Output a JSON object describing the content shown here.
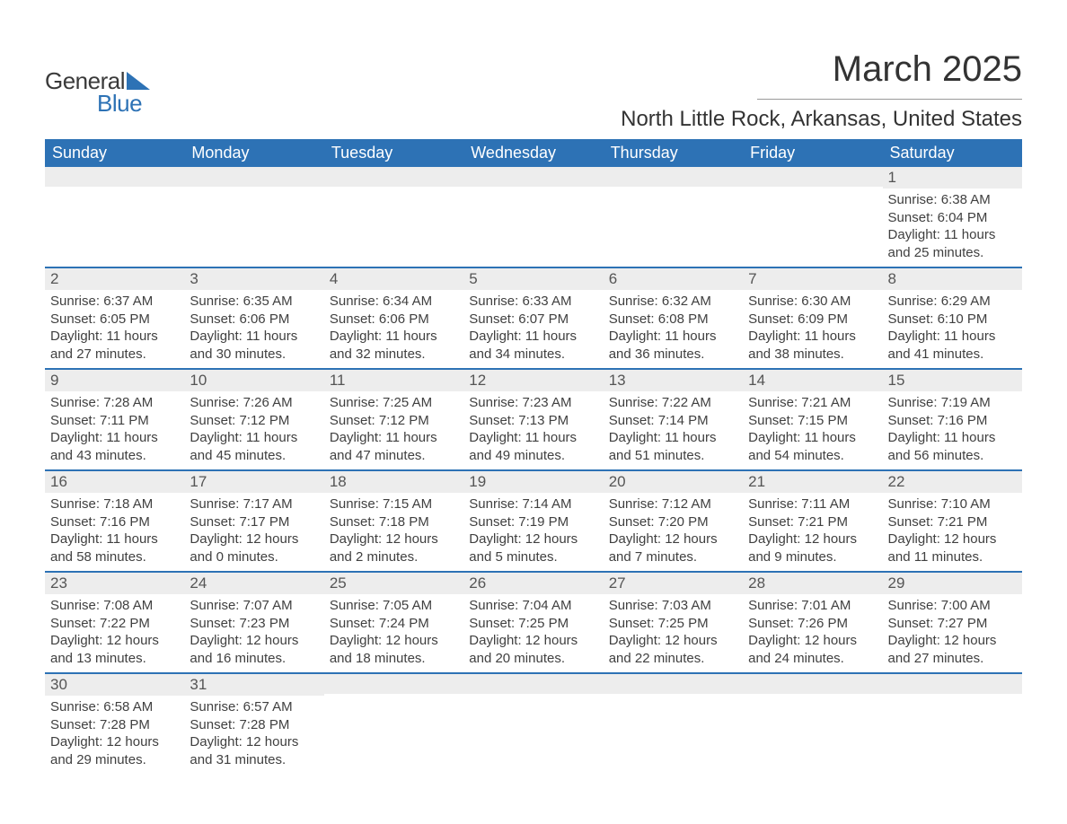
{
  "logo": {
    "top": "General",
    "bottom": "Blue"
  },
  "title": "March 2025",
  "location": "North Little Rock, Arkansas, United States",
  "columns": [
    "Sunday",
    "Monday",
    "Tuesday",
    "Wednesday",
    "Thursday",
    "Friday",
    "Saturday"
  ],
  "colors": {
    "header_bg": "#2d72b5",
    "header_fg": "#ffffff",
    "daynum_bg": "#ededed",
    "week_border": "#2d72b5",
    "text": "#404040"
  },
  "typography": {
    "title_fontsize_pt": 30,
    "location_fontsize_pt": 18,
    "header_fontsize_pt": 14,
    "body_fontsize_pt": 11
  },
  "weeks": [
    [
      {
        "num": "",
        "sunrise": "",
        "sunset": "",
        "daylight": ""
      },
      {
        "num": "",
        "sunrise": "",
        "sunset": "",
        "daylight": ""
      },
      {
        "num": "",
        "sunrise": "",
        "sunset": "",
        "daylight": ""
      },
      {
        "num": "",
        "sunrise": "",
        "sunset": "",
        "daylight": ""
      },
      {
        "num": "",
        "sunrise": "",
        "sunset": "",
        "daylight": ""
      },
      {
        "num": "",
        "sunrise": "",
        "sunset": "",
        "daylight": ""
      },
      {
        "num": "1",
        "sunrise": "Sunrise: 6:38 AM",
        "sunset": "Sunset: 6:04 PM",
        "daylight": "Daylight: 11 hours and 25 minutes."
      }
    ],
    [
      {
        "num": "2",
        "sunrise": "Sunrise: 6:37 AM",
        "sunset": "Sunset: 6:05 PM",
        "daylight": "Daylight: 11 hours and 27 minutes."
      },
      {
        "num": "3",
        "sunrise": "Sunrise: 6:35 AM",
        "sunset": "Sunset: 6:06 PM",
        "daylight": "Daylight: 11 hours and 30 minutes."
      },
      {
        "num": "4",
        "sunrise": "Sunrise: 6:34 AM",
        "sunset": "Sunset: 6:06 PM",
        "daylight": "Daylight: 11 hours and 32 minutes."
      },
      {
        "num": "5",
        "sunrise": "Sunrise: 6:33 AM",
        "sunset": "Sunset: 6:07 PM",
        "daylight": "Daylight: 11 hours and 34 minutes."
      },
      {
        "num": "6",
        "sunrise": "Sunrise: 6:32 AM",
        "sunset": "Sunset: 6:08 PM",
        "daylight": "Daylight: 11 hours and 36 minutes."
      },
      {
        "num": "7",
        "sunrise": "Sunrise: 6:30 AM",
        "sunset": "Sunset: 6:09 PM",
        "daylight": "Daylight: 11 hours and 38 minutes."
      },
      {
        "num": "8",
        "sunrise": "Sunrise: 6:29 AM",
        "sunset": "Sunset: 6:10 PM",
        "daylight": "Daylight: 11 hours and 41 minutes."
      }
    ],
    [
      {
        "num": "9",
        "sunrise": "Sunrise: 7:28 AM",
        "sunset": "Sunset: 7:11 PM",
        "daylight": "Daylight: 11 hours and 43 minutes."
      },
      {
        "num": "10",
        "sunrise": "Sunrise: 7:26 AM",
        "sunset": "Sunset: 7:12 PM",
        "daylight": "Daylight: 11 hours and 45 minutes."
      },
      {
        "num": "11",
        "sunrise": "Sunrise: 7:25 AM",
        "sunset": "Sunset: 7:12 PM",
        "daylight": "Daylight: 11 hours and 47 minutes."
      },
      {
        "num": "12",
        "sunrise": "Sunrise: 7:23 AM",
        "sunset": "Sunset: 7:13 PM",
        "daylight": "Daylight: 11 hours and 49 minutes."
      },
      {
        "num": "13",
        "sunrise": "Sunrise: 7:22 AM",
        "sunset": "Sunset: 7:14 PM",
        "daylight": "Daylight: 11 hours and 51 minutes."
      },
      {
        "num": "14",
        "sunrise": "Sunrise: 7:21 AM",
        "sunset": "Sunset: 7:15 PM",
        "daylight": "Daylight: 11 hours and 54 minutes."
      },
      {
        "num": "15",
        "sunrise": "Sunrise: 7:19 AM",
        "sunset": "Sunset: 7:16 PM",
        "daylight": "Daylight: 11 hours and 56 minutes."
      }
    ],
    [
      {
        "num": "16",
        "sunrise": "Sunrise: 7:18 AM",
        "sunset": "Sunset: 7:16 PM",
        "daylight": "Daylight: 11 hours and 58 minutes."
      },
      {
        "num": "17",
        "sunrise": "Sunrise: 7:17 AM",
        "sunset": "Sunset: 7:17 PM",
        "daylight": "Daylight: 12 hours and 0 minutes."
      },
      {
        "num": "18",
        "sunrise": "Sunrise: 7:15 AM",
        "sunset": "Sunset: 7:18 PM",
        "daylight": "Daylight: 12 hours and 2 minutes."
      },
      {
        "num": "19",
        "sunrise": "Sunrise: 7:14 AM",
        "sunset": "Sunset: 7:19 PM",
        "daylight": "Daylight: 12 hours and 5 minutes."
      },
      {
        "num": "20",
        "sunrise": "Sunrise: 7:12 AM",
        "sunset": "Sunset: 7:20 PM",
        "daylight": "Daylight: 12 hours and 7 minutes."
      },
      {
        "num": "21",
        "sunrise": "Sunrise: 7:11 AM",
        "sunset": "Sunset: 7:21 PM",
        "daylight": "Daylight: 12 hours and 9 minutes."
      },
      {
        "num": "22",
        "sunrise": "Sunrise: 7:10 AM",
        "sunset": "Sunset: 7:21 PM",
        "daylight": "Daylight: 12 hours and 11 minutes."
      }
    ],
    [
      {
        "num": "23",
        "sunrise": "Sunrise: 7:08 AM",
        "sunset": "Sunset: 7:22 PM",
        "daylight": "Daylight: 12 hours and 13 minutes."
      },
      {
        "num": "24",
        "sunrise": "Sunrise: 7:07 AM",
        "sunset": "Sunset: 7:23 PM",
        "daylight": "Daylight: 12 hours and 16 minutes."
      },
      {
        "num": "25",
        "sunrise": "Sunrise: 7:05 AM",
        "sunset": "Sunset: 7:24 PM",
        "daylight": "Daylight: 12 hours and 18 minutes."
      },
      {
        "num": "26",
        "sunrise": "Sunrise: 7:04 AM",
        "sunset": "Sunset: 7:25 PM",
        "daylight": "Daylight: 12 hours and 20 minutes."
      },
      {
        "num": "27",
        "sunrise": "Sunrise: 7:03 AM",
        "sunset": "Sunset: 7:25 PM",
        "daylight": "Daylight: 12 hours and 22 minutes."
      },
      {
        "num": "28",
        "sunrise": "Sunrise: 7:01 AM",
        "sunset": "Sunset: 7:26 PM",
        "daylight": "Daylight: 12 hours and 24 minutes."
      },
      {
        "num": "29",
        "sunrise": "Sunrise: 7:00 AM",
        "sunset": "Sunset: 7:27 PM",
        "daylight": "Daylight: 12 hours and 27 minutes."
      }
    ],
    [
      {
        "num": "30",
        "sunrise": "Sunrise: 6:58 AM",
        "sunset": "Sunset: 7:28 PM",
        "daylight": "Daylight: 12 hours and 29 minutes."
      },
      {
        "num": "31",
        "sunrise": "Sunrise: 6:57 AM",
        "sunset": "Sunset: 7:28 PM",
        "daylight": "Daylight: 12 hours and 31 minutes."
      },
      {
        "num": "",
        "sunrise": "",
        "sunset": "",
        "daylight": ""
      },
      {
        "num": "",
        "sunrise": "",
        "sunset": "",
        "daylight": ""
      },
      {
        "num": "",
        "sunrise": "",
        "sunset": "",
        "daylight": ""
      },
      {
        "num": "",
        "sunrise": "",
        "sunset": "",
        "daylight": ""
      },
      {
        "num": "",
        "sunrise": "",
        "sunset": "",
        "daylight": ""
      }
    ]
  ]
}
